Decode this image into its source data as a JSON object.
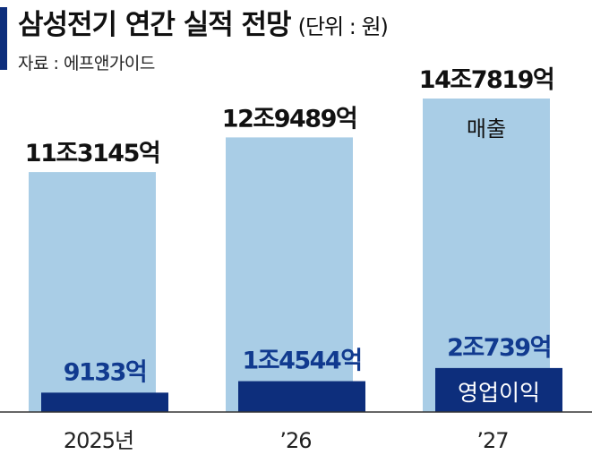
{
  "header": {
    "title": "삼성전기 연간 실적 전망",
    "unit": "(단위 : 원)",
    "source": "자료 : 에프앤가이드"
  },
  "colors": {
    "revenue": "#a9cde6",
    "operating_profit": "#0d2e7c",
    "accent": "#0d2e7c"
  },
  "chart_data": {
    "type": "bar",
    "title": "삼성전기 연간 실적 전망",
    "unit": "원",
    "categories": [
      "2025년",
      "’26",
      "’27"
    ],
    "series": [
      {
        "name": "매출",
        "values": [
          113145,
          129489,
          147819
        ],
        "value_unit": "억원",
        "labels": [
          "11조3145억",
          "12조9489억",
          "14조7819억"
        ]
      },
      {
        "name": "영업이익",
        "values": [
          9133,
          14544,
          20739
        ],
        "value_unit": "억원",
        "labels": [
          "9133억",
          "1조4544억",
          "2조739억"
        ]
      }
    ]
  }
}
